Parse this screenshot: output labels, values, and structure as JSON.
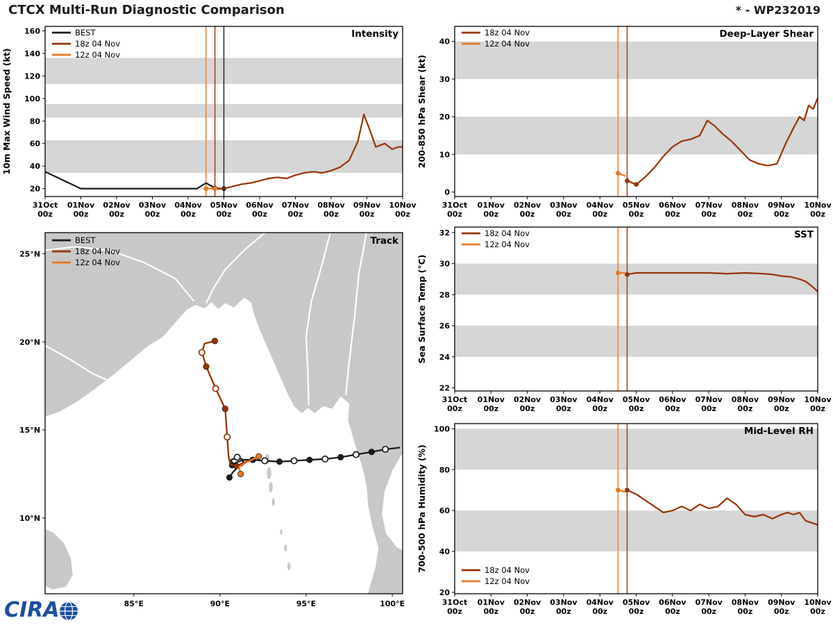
{
  "header": {
    "title": "CTCX Multi-Run Diagnostic Comparison",
    "storm_id": "* - WP232019"
  },
  "footer": {
    "logo_text": "CIRA"
  },
  "legend": {
    "best": "BEST",
    "run18": "18z 04 Nov",
    "run12": "12z 04 Nov"
  },
  "colors": {
    "best": "#1a1a1a",
    "run18": "#993300",
    "run12": "#E8761E",
    "band": "#d6d6d6",
    "land": "#c8c8c8",
    "sea": "#ffffff"
  },
  "time_axis": {
    "hours": [
      0,
      24,
      48,
      72,
      96,
      120,
      144,
      168,
      192,
      216,
      240
    ],
    "labels": [
      "31Oct",
      "01Nov",
      "02Nov",
      "03Nov",
      "04Nov",
      "05Nov",
      "06Nov",
      "07Nov",
      "08Nov",
      "09Nov",
      "10Nov"
    ],
    "sub": "00z"
  },
  "chart_data": [
    {
      "id": "intensity",
      "type": "line",
      "title": "Intensity",
      "ylabel": "10m Max Wind Speed (kt)",
      "xlim": [
        0,
        240
      ],
      "ylim": [
        13,
        164
      ],
      "yticks": [
        20,
        40,
        60,
        80,
        100,
        120,
        140,
        160
      ],
      "bands": [
        [
          34,
          63
        ],
        [
          83,
          95
        ],
        [
          113,
          136
        ]
      ],
      "vlines": [
        {
          "x": 108,
          "color": "run12"
        },
        {
          "x": 114,
          "color": "run18"
        },
        {
          "x": 120,
          "color": "best"
        }
      ],
      "legend_pos": "top-left",
      "legend_items": [
        "best",
        "run18",
        "run12"
      ],
      "series": [
        {
          "name": "BEST",
          "color": "best",
          "x": [
            0,
            24,
            96,
            102,
            108,
            114,
            120
          ],
          "y": [
            35,
            20,
            20,
            20,
            25,
            20.5,
            20
          ],
          "markers_filled": [
            [
              114,
              20.5
            ],
            [
              120,
              20
            ]
          ]
        },
        {
          "name": "18z 04 Nov",
          "color": "run18",
          "x": [
            114,
            120,
            126,
            132,
            138,
            144,
            150,
            156,
            162,
            168,
            174,
            180,
            186,
            192,
            198,
            204,
            210,
            214,
            218,
            222,
            228,
            233,
            237,
            240
          ],
          "y": [
            20,
            20,
            22,
            24,
            25,
            27,
            29,
            30,
            29,
            32,
            34,
            35,
            34,
            36,
            39,
            45,
            62,
            86,
            72,
            57,
            60,
            55,
            57,
            57
          ],
          "markers_filled": [
            [
              114,
              20
            ]
          ]
        },
        {
          "name": "12z 04 Nov",
          "color": "run12",
          "x": [
            108,
            114
          ],
          "y": [
            20,
            20
          ],
          "markers_filled": [
            [
              108,
              20
            ],
            [
              114,
              20
            ]
          ]
        }
      ]
    },
    {
      "id": "shear",
      "type": "line",
      "title": "Deep-Layer Shear",
      "ylabel": "200-850 hPa Shear (kt)",
      "xlim": [
        0,
        240
      ],
      "ylim": [
        -1.2,
        44
      ],
      "yticks": [
        0,
        10,
        20,
        30,
        40
      ],
      "bands": [
        [
          10,
          20
        ],
        [
          30,
          40
        ]
      ],
      "vlines": [
        {
          "x": 108,
          "color": "run12"
        },
        {
          "x": 114,
          "color": "run18"
        }
      ],
      "legend_pos": "top-left",
      "legend_items": [
        "run18",
        "run12"
      ],
      "series": [
        {
          "name": "18z 04 Nov",
          "color": "run18",
          "x": [
            114,
            120,
            126,
            132,
            138,
            144,
            150,
            156,
            162,
            167,
            172,
            177,
            183,
            189,
            195,
            201,
            207,
            213,
            219,
            224,
            228,
            231,
            234,
            237,
            240
          ],
          "y": [
            3,
            2,
            4,
            6.5,
            9.5,
            12,
            13.5,
            14,
            15,
            19,
            17.5,
            15.5,
            13.5,
            11,
            8.5,
            7.5,
            7,
            7.5,
            13,
            17,
            20,
            19,
            23,
            22,
            25
          ],
          "markers_filled": [
            [
              114,
              3
            ],
            [
              120,
              2
            ]
          ]
        },
        {
          "name": "12z 04 Nov",
          "color": "run12",
          "x": [
            108,
            113
          ],
          "y": [
            5,
            4.2
          ],
          "markers_filled": [
            [
              108,
              5
            ]
          ]
        }
      ]
    },
    {
      "id": "sst",
      "type": "line",
      "title": "SST",
      "ylabel": "Sea Surface Temp (°C)",
      "xlim": [
        0,
        240
      ],
      "ylim": [
        21.8,
        32.35
      ],
      "yticks": [
        22,
        24,
        26,
        28,
        30,
        32
      ],
      "bands": [
        [
          24,
          26
        ],
        [
          28,
          30
        ]
      ],
      "vlines": [
        {
          "x": 108,
          "color": "run12"
        },
        {
          "x": 114,
          "color": "run18"
        }
      ],
      "legend_pos": "top-left",
      "legend_items": [
        "run18",
        "run12"
      ],
      "series": [
        {
          "name": "18z 04 Nov",
          "color": "run18",
          "x": [
            114,
            120,
            132,
            144,
            156,
            168,
            180,
            192,
            204,
            210,
            216,
            222,
            228,
            232,
            236,
            240
          ],
          "y": [
            29.3,
            29.4,
            29.4,
            29.4,
            29.4,
            29.4,
            29.35,
            29.4,
            29.35,
            29.3,
            29.2,
            29.15,
            29.0,
            28.85,
            28.55,
            28.2
          ],
          "markers_filled": [
            [
              114,
              29.3
            ]
          ]
        },
        {
          "name": "12z 04 Nov",
          "color": "run12",
          "x": [
            108,
            113
          ],
          "y": [
            29.4,
            29.4
          ],
          "markers_filled": [
            [
              108,
              29.4
            ]
          ]
        }
      ]
    },
    {
      "id": "rh",
      "type": "line",
      "title": "Mid-Level RH",
      "ylabel": "700-500 hPa Humidity (%)",
      "xlim": [
        0,
        240
      ],
      "ylim": [
        19.3,
        102.5
      ],
      "yticks": [
        20,
        40,
        60,
        80,
        100
      ],
      "bands": [
        [
          40,
          60
        ],
        [
          80,
          100
        ]
      ],
      "vlines": [
        {
          "x": 108,
          "color": "run12"
        },
        {
          "x": 114,
          "color": "run18"
        }
      ],
      "legend_pos": "bottom-left",
      "legend_items": [
        "run18",
        "run12"
      ],
      "series": [
        {
          "name": "18z 04 Nov",
          "color": "run18",
          "x": [
            114,
            120,
            126,
            132,
            138,
            144,
            150,
            156,
            162,
            168,
            174,
            180,
            186,
            192,
            198,
            204,
            210,
            216,
            220,
            224,
            228,
            232,
            236,
            240
          ],
          "y": [
            70,
            68,
            65,
            62,
            59,
            60,
            62,
            60,
            63,
            61,
            62,
            66,
            63,
            58,
            57,
            58,
            56,
            58,
            59,
            58,
            59,
            55,
            54,
            53
          ],
          "markers_filled": [
            [
              114,
              70
            ]
          ]
        },
        {
          "name": "12z 04 Nov",
          "color": "run12",
          "x": [
            108,
            113
          ],
          "y": [
            70,
            69
          ],
          "markers_filled": [
            [
              108,
              70
            ]
          ]
        }
      ]
    },
    {
      "id": "track",
      "type": "map",
      "title": "Track",
      "lonlim": [
        79.85,
        100.6
      ],
      "latlim": [
        5.7,
        26.2
      ],
      "lonticks": [
        {
          "v": 85,
          "label": "85°E"
        },
        {
          "v": 90,
          "label": "90°E"
        },
        {
          "v": 95,
          "label": "95°E"
        },
        {
          "v": 100,
          "label": "100°E"
        }
      ],
      "latticks": [
        {
          "v": 10,
          "label": "10°N"
        },
        {
          "v": 15,
          "label": "15°N"
        },
        {
          "v": 20,
          "label": "20°N"
        },
        {
          "v": 25,
          "label": "25°N"
        }
      ],
      "legend_items": [
        "best",
        "run18",
        "run12"
      ],
      "series": [
        {
          "name": "BEST",
          "color": "best",
          "lon": [
            100.45,
            99.6,
            98.8,
            97.9,
            97.0,
            96.1,
            95.2,
            94.3,
            93.45,
            92.6,
            91.9,
            91.35,
            90.95,
            90.7,
            90.65,
            91.0,
            91.35,
            91.3,
            91.0,
            90.75,
            90.55
          ],
          "lat": [
            14.0,
            13.9,
            13.75,
            13.6,
            13.45,
            13.35,
            13.3,
            13.25,
            13.2,
            13.25,
            13.3,
            13.3,
            13.15,
            13.0,
            13.3,
            13.45,
            13.3,
            13.0,
            12.85,
            12.6,
            12.3
          ],
          "markers_open": [
            [
              99.6,
              13.9
            ],
            [
              97.9,
              13.6
            ],
            [
              96.1,
              13.35
            ],
            [
              94.3,
              13.25
            ],
            [
              92.6,
              13.25
            ],
            [
              91.0,
              13.45
            ]
          ],
          "markers_filled": [
            [
              98.8,
              13.75
            ],
            [
              97.0,
              13.45
            ],
            [
              95.2,
              13.3
            ],
            [
              93.45,
              13.2
            ],
            [
              91.9,
              13.3
            ],
            [
              90.7,
              13.0
            ],
            [
              90.55,
              12.3
            ]
          ]
        },
        {
          "name": "18z 04 Nov",
          "color": "run18",
          "lon": [
            91.9,
            91.4,
            90.95,
            90.6,
            90.5,
            90.42,
            90.3,
            89.75,
            89.2,
            88.95,
            89.1,
            89.7
          ],
          "lat": [
            13.3,
            13.15,
            12.95,
            13.05,
            13.5,
            14.6,
            16.2,
            17.35,
            18.6,
            19.4,
            19.9,
            20.05
          ],
          "markers_open": [
            [
              90.42,
              14.6
            ],
            [
              89.75,
              17.35
            ],
            [
              88.95,
              19.4
            ]
          ],
          "markers_filled": [
            [
              90.95,
              12.95
            ],
            [
              90.3,
              16.2
            ],
            [
              89.2,
              18.6
            ],
            [
              89.7,
              20.05
            ]
          ]
        },
        {
          "name": "12z 04 Nov",
          "color": "run12",
          "lon": [
            92.25,
            91.6,
            91.1,
            91.2
          ],
          "lat": [
            13.5,
            13.2,
            12.9,
            12.5
          ],
          "markers_open": [],
          "markers_filled": [
            [
              92.25,
              13.5
            ],
            [
              91.2,
              12.5
            ]
          ]
        }
      ]
    }
  ]
}
